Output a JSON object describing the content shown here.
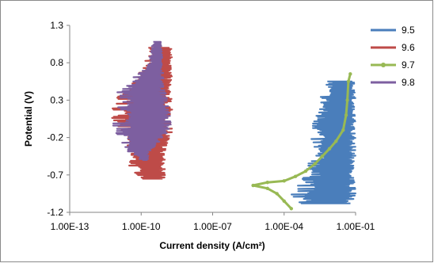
{
  "chart_data": {
    "type": "line",
    "xlabel": "Current density (A/cm²)",
    "ylabel": "Potential (V)",
    "x_scale": "log",
    "xlim": [
      1e-13,
      0.1
    ],
    "ylim": [
      -1.2,
      1.3
    ],
    "x_ticks": [
      "1.00E-13",
      "1.00E-10",
      "1.00E-07",
      "1.00E-04",
      "1.00E-01"
    ],
    "y_ticks": [
      "1.3",
      "0.8",
      "0.3",
      "-0.2",
      "-0.7",
      "-1.2"
    ],
    "grid": false,
    "legend_position": "right",
    "series": [
      {
        "name": "9.5",
        "color": "#4a7ebb",
        "x_range": [
          0.0001,
          0.1
        ],
        "y_range": [
          -1.08,
          0.55
        ],
        "envelope": [
          {
            "y": 0.55,
            "xmin": 0.005,
            "xmax": 0.1
          },
          {
            "y": 0.3,
            "xmin": 0.003,
            "xmax": 0.1
          },
          {
            "y": 0.05,
            "xmin": 0.0015,
            "xmax": 0.1
          },
          {
            "y": -0.2,
            "xmin": 0.0012,
            "xmax": 0.1
          },
          {
            "y": -0.5,
            "xmin": 0.0011,
            "xmax": 0.1
          },
          {
            "y": -0.8,
            "xmin": 0.0005,
            "xmax": 0.1
          },
          {
            "y": -1.0,
            "xmin": 0.00012,
            "xmax": 0.1
          },
          {
            "y": -1.08,
            "xmin": 0.0004,
            "xmax": 0.08
          }
        ]
      },
      {
        "name": "9.6",
        "color": "#be4b48",
        "x_range": [
          5e-12,
          2e-09
        ],
        "y_range": [
          -0.75,
          1.0
        ],
        "envelope": [
          {
            "y": 1.0,
            "xmin": 2e-10,
            "xmax": 2e-09
          },
          {
            "y": 0.7,
            "xmin": 1e-10,
            "xmax": 2e-09
          },
          {
            "y": 0.4,
            "xmin": 1e-11,
            "xmax": 2e-09
          },
          {
            "y": 0.1,
            "xmin": 5e-12,
            "xmax": 2e-09
          },
          {
            "y": -0.2,
            "xmin": 2e-11,
            "xmax": 2e-09
          },
          {
            "y": -0.4,
            "xmin": 2e-11,
            "xmax": 1e-09
          },
          {
            "y": -0.6,
            "xmin": 3e-11,
            "xmax": 1e-09
          },
          {
            "y": -0.75,
            "xmin": 1e-10,
            "xmax": 1e-09
          }
        ]
      },
      {
        "name": "9.7",
        "color": "#98b954",
        "points": [
          {
            "x": 0.06,
            "y": 0.65
          },
          {
            "x": 0.05,
            "y": 0.55
          },
          {
            "x": 0.045,
            "y": 0.3
          },
          {
            "x": 0.04,
            "y": 0.1
          },
          {
            "x": 0.03,
            "y": -0.1
          },
          {
            "x": 0.015,
            "y": -0.25
          },
          {
            "x": 0.008,
            "y": -0.35
          },
          {
            "x": 0.004,
            "y": -0.45
          },
          {
            "x": 0.002,
            "y": -0.55
          },
          {
            "x": 0.0008,
            "y": -0.65
          },
          {
            "x": 0.0003,
            "y": -0.72
          },
          {
            "x": 0.0001,
            "y": -0.78
          },
          {
            "x": 2e-05,
            "y": -0.8
          },
          {
            "x": 5e-06,
            "y": -0.84
          },
          {
            "x": 2e-05,
            "y": -0.88
          },
          {
            "x": 5e-05,
            "y": -0.95
          },
          {
            "x": 0.0001,
            "y": -1.05
          },
          {
            "x": 0.0002,
            "y": -1.15
          }
        ]
      },
      {
        "name": "9.8",
        "color": "#7d5fa0",
        "x_range": [
          5e-12,
          2e-09
        ],
        "y_range": [
          -0.5,
          1.08
        ],
        "envelope": [
          {
            "y": 1.08,
            "xmin": 3e-10,
            "xmax": 7e-10
          },
          {
            "y": 0.8,
            "xmin": 2e-10,
            "xmax": 8e-10
          },
          {
            "y": 0.45,
            "xmin": 1e-11,
            "xmax": 1e-09
          },
          {
            "y": 0.2,
            "xmin": 1e-11,
            "xmax": 1.5e-09
          },
          {
            "y": 0.0,
            "xmin": 5e-12,
            "xmax": 2e-09
          },
          {
            "y": -0.2,
            "xmin": 1e-11,
            "xmax": 1e-09
          },
          {
            "y": -0.4,
            "xmin": 3e-11,
            "xmax": 2e-10
          },
          {
            "y": -0.5,
            "xmin": 1e-10,
            "xmax": 2e-10
          }
        ]
      }
    ]
  }
}
